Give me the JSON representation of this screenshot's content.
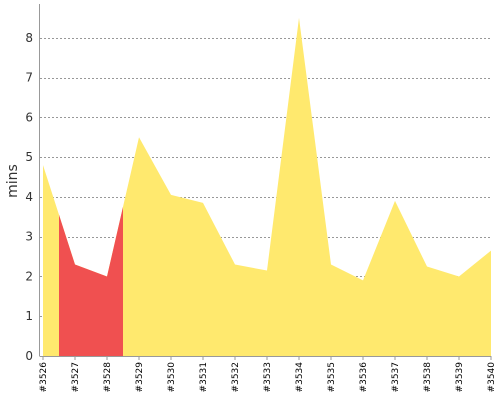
{
  "chart_data": {
    "type": "area",
    "title": "",
    "xlabel": "",
    "ylabel": "mins",
    "ylim": [
      0,
      8.8
    ],
    "yticks": [
      0,
      1,
      2,
      3,
      4,
      5,
      6,
      7,
      8
    ],
    "grid": true,
    "legend": "none",
    "categories": [
      "#3526",
      "#3527",
      "#3528",
      "#3529",
      "#3530",
      "#3531",
      "#3532",
      "#3533",
      "#3534",
      "#3535",
      "#3536",
      "#3537",
      "#3538",
      "#3539",
      "#3540"
    ],
    "values": [
      4.8,
      2.3,
      2.0,
      5.5,
      4.05,
      3.85,
      2.3,
      2.15,
      8.5,
      2.3,
      1.9,
      3.9,
      2.25,
      2.0,
      2.65
    ],
    "highlight": {
      "color": "#f05050",
      "ranges": [
        [
          0.5,
          2.5
        ]
      ]
    },
    "colors": {
      "fill": "#ffe96e",
      "highlight": "#f05050",
      "grid": "#777777",
      "axis": "#999999",
      "text": "#333333"
    }
  }
}
